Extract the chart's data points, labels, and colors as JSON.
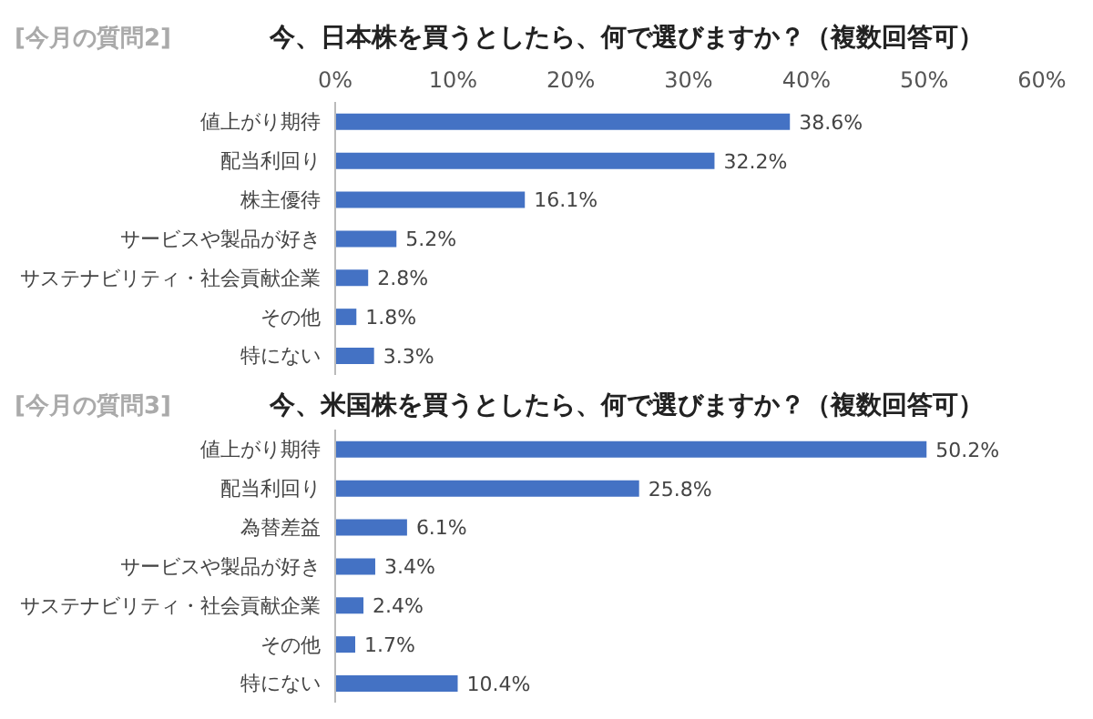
{
  "chart_data": [
    {
      "type": "bar",
      "orientation": "horizontal",
      "title": "今、日本株を買うとしたら、何で選びますか？（複数回答可）",
      "annotations": [
        "[今月の質問2]"
      ],
      "categories": [
        "値上がり期待",
        "配当利回り",
        "株主優待",
        "サービスや製品が好き",
        "サステナビリティ・社会貢献企業",
        "その他",
        "特にない"
      ],
      "values": [
        38.6,
        32.2,
        16.1,
        5.2,
        2.8,
        1.8,
        3.3
      ],
      "value_labels": [
        "38.6%",
        "32.2%",
        "16.1%",
        "5.2%",
        "2.8%",
        "1.8%",
        "3.3%"
      ],
      "color": "#4472c4",
      "xlim": [
        0,
        60
      ],
      "xticks": [
        {
          "value": 0,
          "label": "0%"
        },
        {
          "value": 10,
          "label": "10%"
        },
        {
          "value": 20,
          "label": "20%"
        },
        {
          "value": 30,
          "label": "30%"
        },
        {
          "value": 40,
          "label": "40%"
        },
        {
          "value": 50,
          "label": "50%"
        },
        {
          "value": 60,
          "label": "60%"
        }
      ],
      "grid": false
    },
    {
      "type": "bar",
      "orientation": "horizontal",
      "title": "今、米国株を買うとしたら、何で選びますか？（複数回答可）",
      "annotations": [
        "[今月の質問3]"
      ],
      "categories": [
        "値上がり期待",
        "配当利回り",
        "為替差益",
        "サービスや製品が好き",
        "サステナビリティ・社会貢献企業",
        "その他",
        "特にない"
      ],
      "values": [
        50.2,
        25.8,
        6.1,
        3.4,
        2.4,
        1.7,
        10.4
      ],
      "value_labels": [
        "50.2%",
        "25.8%",
        "6.1%",
        "3.4%",
        "2.4%",
        "1.7%",
        "10.4%"
      ],
      "color": "#4472c4",
      "xlim": [
        0,
        60
      ],
      "tick_labels": "y",
      "grid": false
    }
  ]
}
